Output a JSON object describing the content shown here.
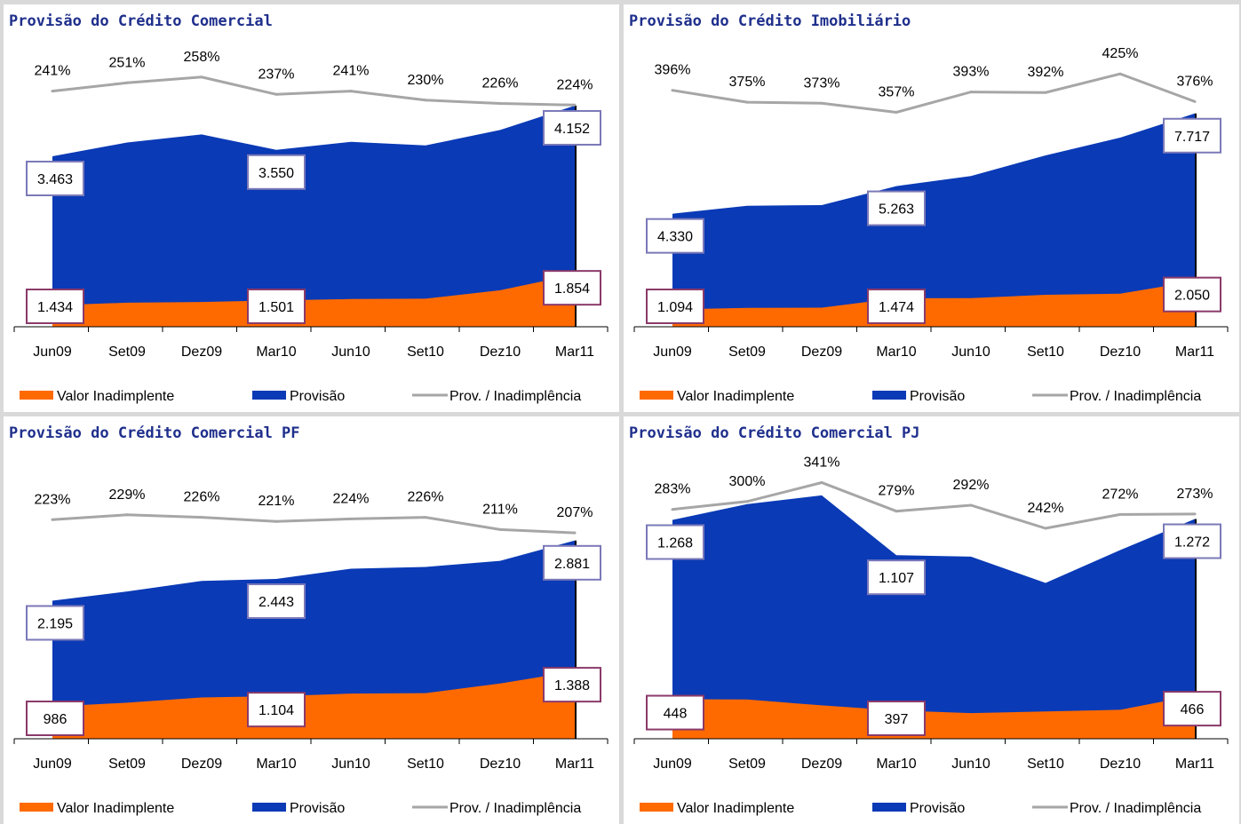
{
  "colors": {
    "valor": "#ff6a00",
    "provisao": "#0a3ab6",
    "ratio": "#a6a6a6",
    "prov_box": "#7b79b8",
    "valor_box": "#8b3a6a"
  },
  "legend": {
    "valor": "Valor Inadimplente",
    "provisao": "Provisão",
    "ratio": "Prov. / Inadimplência"
  },
  "chart_data": [
    {
      "type": "area",
      "title": "Provisão do Crédito Comercial",
      "categories": [
        "Jun09",
        "Set09",
        "Dez09",
        "Mar10",
        "Jun10",
        "Set10",
        "Dez10",
        "Mar11"
      ],
      "series": [
        {
          "name": "Valor Inadimplente",
          "values": [
            1434,
            1470,
            1480,
            1501,
            1520,
            1525,
            1640,
            1854
          ]
        },
        {
          "name": "Provisão",
          "values": [
            3463,
            3650,
            3760,
            3550,
            3660,
            3610,
            3820,
            4152
          ]
        },
        {
          "name": "Prov. / Inadimplência",
          "values": [
            241,
            251,
            258,
            237,
            241,
            230,
            226,
            224
          ],
          "labels": [
            "241%",
            "251%",
            "258%",
            "237%",
            "241%",
            "230%",
            "226%",
            "224%"
          ]
        }
      ],
      "data_labels": {
        "valor": [
          {
            "index": 0,
            "text": "1.434"
          },
          {
            "index": 3,
            "text": "1.501"
          },
          {
            "index": 7,
            "text": "1.854"
          }
        ],
        "provisao": [
          {
            "index": 0,
            "text": "3.463"
          },
          {
            "index": 3,
            "text": "3.550"
          },
          {
            "index": 7,
            "text": "4.152"
          }
        ]
      }
    },
    {
      "type": "area",
      "title": "Provisão do Crédito Imobiliário",
      "categories": [
        "Jun09",
        "Set09",
        "Dez09",
        "Mar10",
        "Jun10",
        "Set10",
        "Dez10",
        "Mar11"
      ],
      "series": [
        {
          "name": "Valor Inadimplente",
          "values": [
            1094,
            1150,
            1155,
            1474,
            1480,
            1590,
            1630,
            2050
          ]
        },
        {
          "name": "Provisão",
          "values": [
            4330,
            4600,
            4620,
            5263,
            5600,
            6300,
            6900,
            7717
          ]
        },
        {
          "name": "Prov. / Inadimplência",
          "values": [
            396,
            375,
            373,
            357,
            393,
            392,
            425,
            376
          ],
          "labels": [
            "396%",
            "375%",
            "373%",
            "357%",
            "393%",
            "392%",
            "425%",
            "376%"
          ]
        }
      ],
      "data_labels": {
        "valor": [
          {
            "index": 0,
            "text": "1.094"
          },
          {
            "index": 3,
            "text": "1.474"
          },
          {
            "index": 7,
            "text": "2.050"
          }
        ],
        "provisao": [
          {
            "index": 0,
            "text": "4.330"
          },
          {
            "index": 3,
            "text": "5.263"
          },
          {
            "index": 7,
            "text": "7.717"
          }
        ]
      }
    },
    {
      "type": "area",
      "title": "Provisão do Crédito Comercial PF",
      "categories": [
        "Jun09",
        "Set09",
        "Dez09",
        "Mar10",
        "Jun10",
        "Set10",
        "Dez10",
        "Mar11"
      ],
      "series": [
        {
          "name": "Valor Inadimplente",
          "values": [
            986,
            1030,
            1090,
            1104,
            1135,
            1140,
            1250,
            1388
          ]
        },
        {
          "name": "Provisão",
          "values": [
            2195,
            2300,
            2420,
            2443,
            2560,
            2580,
            2650,
            2881
          ]
        },
        {
          "name": "Prov. / Inadimplência",
          "values": [
            223,
            229,
            226,
            221,
            224,
            226,
            211,
            207
          ],
          "labels": [
            "223%",
            "229%",
            "226%",
            "221%",
            "224%",
            "226%",
            "211%",
            "207%"
          ]
        }
      ],
      "data_labels": {
        "valor": [
          {
            "index": 0,
            "text": "986"
          },
          {
            "index": 3,
            "text": "1.104"
          },
          {
            "index": 7,
            "text": "1.388"
          }
        ],
        "provisao": [
          {
            "index": 0,
            "text": "2.195"
          },
          {
            "index": 3,
            "text": "2.443"
          },
          {
            "index": 7,
            "text": "2.881"
          }
        ]
      }
    },
    {
      "type": "area",
      "title": "Provisão do Crédito Comercial PJ",
      "categories": [
        "Jun09",
        "Set09",
        "Dez09",
        "Mar10",
        "Jun10",
        "Set10",
        "Dez10",
        "Mar11"
      ],
      "series": [
        {
          "name": "Valor Inadimplente",
          "values": [
            448,
            447,
            420,
            397,
            385,
            392,
            400,
            466
          ]
        },
        {
          "name": "Provisão",
          "values": [
            1268,
            1340,
            1380,
            1107,
            1100,
            980,
            1130,
            1272
          ]
        },
        {
          "name": "Prov. / Inadimplência",
          "values": [
            283,
            300,
            341,
            279,
            292,
            242,
            272,
            273
          ],
          "labels": [
            "283%",
            "300%",
            "341%",
            "279%",
            "292%",
            "242%",
            "272%",
            "273%"
          ]
        }
      ],
      "data_labels": {
        "valor": [
          {
            "index": 0,
            "text": "448"
          },
          {
            "index": 3,
            "text": "397"
          },
          {
            "index": 7,
            "text": "466"
          }
        ],
        "provisao": [
          {
            "index": 0,
            "text": "1.268"
          },
          {
            "index": 3,
            "text": "1.107"
          },
          {
            "index": 7,
            "text": "1.272"
          }
        ]
      }
    }
  ]
}
